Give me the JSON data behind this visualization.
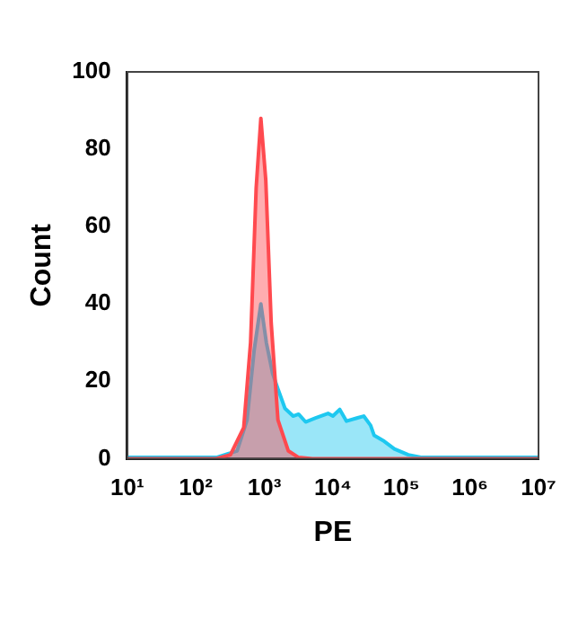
{
  "chart_data": {
    "type": "area",
    "xlabel": "PE",
    "ylabel": "Count",
    "log": "x",
    "grid": false,
    "legend": false,
    "xlim": [
      10,
      10000000
    ],
    "ylim": [
      0,
      100
    ],
    "xticks": [
      {
        "value": 10,
        "label": "10¹"
      },
      {
        "value": 100,
        "label": "10²"
      },
      {
        "value": 1000,
        "label": "10³"
      },
      {
        "value": 10000,
        "label": "10⁴"
      },
      {
        "value": 100000,
        "label": "10⁵"
      },
      {
        "value": 1000000,
        "label": "10⁶"
      },
      {
        "value": 10000000,
        "label": "10⁷"
      }
    ],
    "yticks": [
      0,
      20,
      40,
      60,
      80,
      100
    ],
    "series": [
      {
        "color": "#ff4a4f",
        "x": [
          10,
          200,
          320,
          500,
          630,
          760,
          890,
          1050,
          1260,
          1580,
          2240,
          3160,
          5000,
          10000000
        ],
        "values": [
          0,
          0,
          1,
          8,
          30,
          70,
          88,
          72,
          35,
          10,
          2,
          0.3,
          0,
          0
        ]
      },
      {
        "color": "#1ec8f0",
        "x": [
          10,
          200,
          400,
          560,
          710,
          890,
          1070,
          1320,
          1580,
          2000,
          2630,
          3160,
          4000,
          5600,
          8500,
          10000,
          12600,
          15800,
          22400,
          28200,
          35500,
          40000,
          56000,
          79000,
          126000,
          200000,
          10000000
        ],
        "values": [
          0.3,
          0.3,
          2,
          10,
          28,
          40,
          30,
          22,
          18,
          13,
          11,
          11.5,
          9.5,
          10.5,
          11.7,
          11,
          12.7,
          9.7,
          10.5,
          11,
          8.6,
          6,
          4.5,
          2.5,
          1,
          0.3,
          0.3
        ]
      }
    ]
  }
}
